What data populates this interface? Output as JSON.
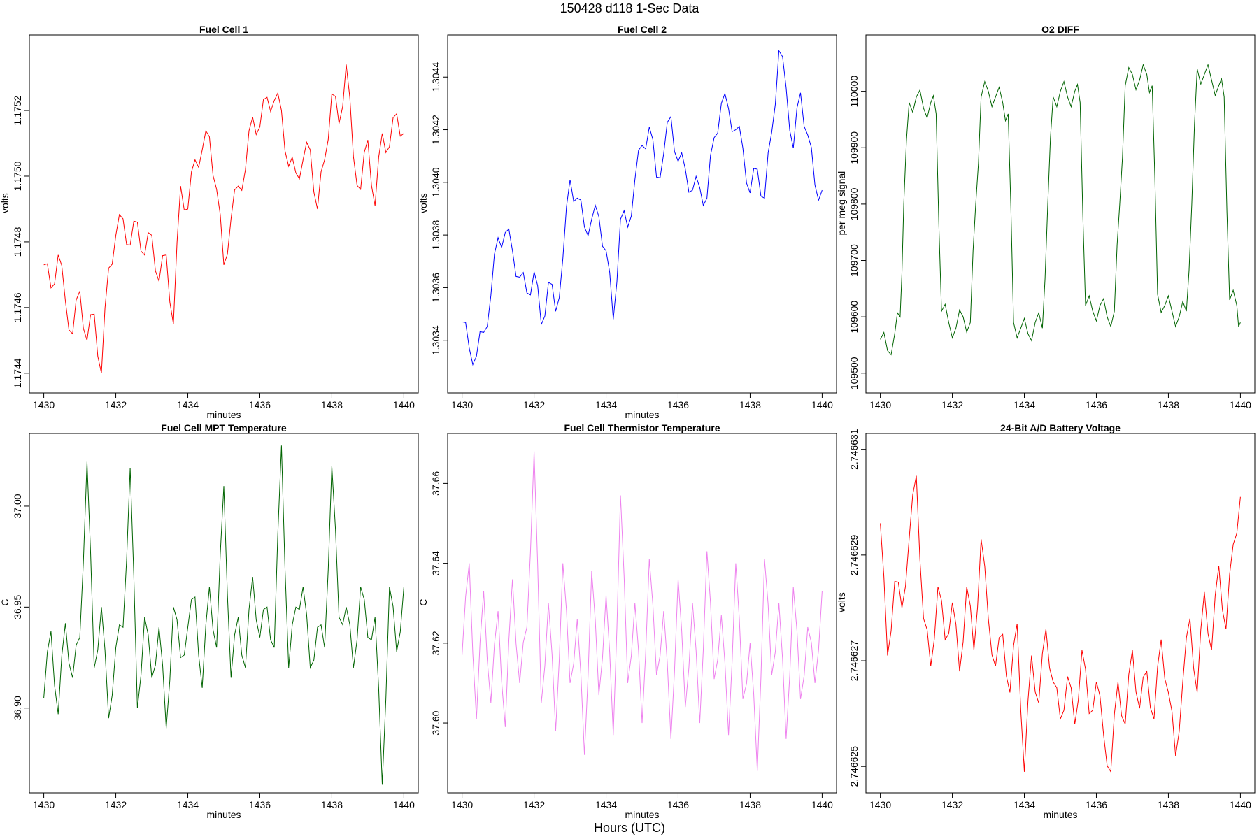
{
  "suptitle": "150428   d118   1-Sec Data",
  "supxlabel": "Hours (UTC)",
  "chart_data": [
    {
      "type": "line",
      "title": "Fuel Cell 1",
      "xlabel": "minutes",
      "ylabel": "volts",
      "color": "#ff0000",
      "xlim": [
        1429.6,
        1440.4
      ],
      "ylim": [
        1.17434,
        1.17543
      ],
      "xticks": [
        "1430",
        "1432",
        "1434",
        "1436",
        "1438",
        "1440"
      ],
      "yticks": [
        "1.1744",
        "1.1746",
        "1.1748",
        "1.1750",
        "1.1752"
      ],
      "series": [
        {
          "x": [
            1430.0,
            1430.2,
            1430.4,
            1430.6,
            1430.8,
            1431.0,
            1431.2,
            1431.4,
            1431.6,
            1431.8,
            1432.0,
            1432.2,
            1432.4,
            1432.6,
            1432.8,
            1433.0,
            1433.2,
            1433.4,
            1433.6,
            1433.8,
            1434.0,
            1434.2,
            1434.4,
            1434.6,
            1434.8,
            1435.0,
            1435.2,
            1435.4,
            1435.6,
            1435.8,
            1436.0,
            1436.2,
            1436.4,
            1436.6,
            1436.8,
            1437.0,
            1437.2,
            1437.4,
            1437.6,
            1437.8,
            1438.0,
            1438.2,
            1438.4,
            1438.6,
            1438.8,
            1439.0,
            1439.2,
            1439.4,
            1439.6,
            1439.8,
            1440.0
          ],
          "y": [
            1.17473,
            1.17466,
            1.17476,
            1.17462,
            1.17452,
            1.17465,
            1.1745,
            1.17458,
            1.1744,
            1.17472,
            1.17482,
            1.17487,
            1.17479,
            1.17486,
            1.17476,
            1.17482,
            1.17468,
            1.17476,
            1.17455,
            1.17497,
            1.1749,
            1.17505,
            1.17508,
            1.17512,
            1.17496,
            1.17473,
            1.17487,
            1.17497,
            1.17502,
            1.17518,
            1.17515,
            1.17524,
            1.17523,
            1.1752,
            1.17503,
            1.17501,
            1.17505,
            1.17508,
            1.1749,
            1.17505,
            1.17525,
            1.17516,
            1.17534,
            1.17506,
            1.17496,
            1.17511,
            1.17491,
            1.17513,
            1.17509,
            1.17519,
            1.17513
          ]
        }
      ]
    },
    {
      "type": "line",
      "title": "Fuel Cell 2",
      "xlabel": "minutes",
      "ylabel": "volts",
      "color": "#0000ff",
      "xlim": [
        1429.6,
        1440.4
      ],
      "ylim": [
        1.3032,
        1.30456
      ],
      "xticks": [
        "1430",
        "1432",
        "1434",
        "1436",
        "1438",
        "1440"
      ],
      "yticks": [
        "1.3034",
        "1.3036",
        "1.3038",
        "1.3040",
        "1.3042",
        "1.3044"
      ],
      "series": [
        {
          "x": [
            1430.0,
            1430.2,
            1430.4,
            1430.6,
            1430.8,
            1431.0,
            1431.2,
            1431.4,
            1431.6,
            1431.8,
            1432.0,
            1432.2,
            1432.4,
            1432.6,
            1432.8,
            1433.0,
            1433.2,
            1433.4,
            1433.6,
            1433.8,
            1434.0,
            1434.2,
            1434.4,
            1434.6,
            1434.8,
            1435.0,
            1435.2,
            1435.4,
            1435.6,
            1435.8,
            1436.0,
            1436.2,
            1436.4,
            1436.6,
            1436.8,
            1437.0,
            1437.2,
            1437.4,
            1437.6,
            1437.8,
            1438.0,
            1438.2,
            1438.4,
            1438.6,
            1438.8,
            1439.0,
            1439.2,
            1439.4,
            1439.6,
            1439.8,
            1440.0
          ],
          "y": [
            1.30347,
            1.30337,
            1.30334,
            1.30343,
            1.30357,
            1.30379,
            1.30381,
            1.30374,
            1.30364,
            1.30358,
            1.30366,
            1.30346,
            1.30362,
            1.30351,
            1.30371,
            1.30401,
            1.30394,
            1.30383,
            1.30386,
            1.30387,
            1.30374,
            1.30348,
            1.30386,
            1.30383,
            1.30401,
            1.30414,
            1.30421,
            1.30402,
            1.30411,
            1.30425,
            1.30408,
            1.30405,
            1.30397,
            1.30398,
            1.30394,
            1.30417,
            1.3043,
            1.30428,
            1.3042,
            1.30413,
            1.30396,
            1.30405,
            1.30394,
            1.30419,
            1.3045,
            1.30436,
            1.30413,
            1.30434,
            1.30418,
            1.30399,
            1.30397
          ]
        }
      ]
    },
    {
      "type": "line",
      "title": "O2 DIFF",
      "xlabel": "",
      "ylabel": "per meg signal",
      "color": "#006400",
      "xlim": [
        1429.6,
        1440.4
      ],
      "ylim": [
        109465,
        110100
      ],
      "xticks": [
        "1430",
        "1432",
        "1434",
        "1436",
        "1438",
        "1440"
      ],
      "yticks": [
        "109500",
        "109600",
        "109700",
        "109800",
        "109900",
        "110000"
      ],
      "series": [
        {
          "x": [
            1430.0,
            1430.2,
            1430.4,
            1430.55,
            1430.65,
            1430.8,
            1431.0,
            1431.2,
            1431.4,
            1431.55,
            1431.7,
            1431.9,
            1432.1,
            1432.3,
            1432.5,
            1432.65,
            1432.8,
            1433.0,
            1433.2,
            1433.4,
            1433.55,
            1433.7,
            1433.9,
            1434.1,
            1434.3,
            1434.5,
            1434.65,
            1434.8,
            1435.0,
            1435.2,
            1435.4,
            1435.55,
            1435.7,
            1435.9,
            1436.1,
            1436.3,
            1436.5,
            1436.65,
            1436.8,
            1437.0,
            1437.2,
            1437.4,
            1437.55,
            1437.7,
            1437.9,
            1438.1,
            1438.3,
            1438.5,
            1438.65,
            1438.8,
            1439.0,
            1439.2,
            1439.4,
            1439.55,
            1439.7,
            1439.9,
            1440.0
          ],
          "y": [
            109560,
            109540,
            109570,
            109600,
            109800,
            109980,
            109990,
            109970,
            109980,
            109960,
            109610,
            109590,
            109580,
            109600,
            109590,
            109800,
            109990,
            110000,
            109990,
            109980,
            109960,
            109590,
            109580,
            109570,
            109590,
            109580,
            109800,
            109990,
            110000,
            109990,
            110000,
            109980,
            109620,
            109610,
            109620,
            109600,
            109610,
            109800,
            110010,
            110030,
            110020,
            110030,
            110010,
            109640,
            109620,
            109610,
            109600,
            109610,
            109800,
            110040,
            110030,
            110020,
            110010,
            109990,
            109630,
            109620,
            109590
          ]
        }
      ]
    },
    {
      "type": "line",
      "title": "Fuel Cell MPT Temperature",
      "xlabel": "minutes",
      "ylabel": "C",
      "color": "#006400",
      "xlim": [
        1429.6,
        1440.4
      ],
      "ylim": [
        36.858,
        37.036
      ],
      "xticks": [
        "1430",
        "1432",
        "1434",
        "1436",
        "1438",
        "1440"
      ],
      "yticks": [
        "36.90",
        "36.95",
        "37.00"
      ],
      "series": [
        {
          "x": [
            1430.0,
            1430.2,
            1430.4,
            1430.6,
            1430.8,
            1431.0,
            1431.2,
            1431.4,
            1431.6,
            1431.8,
            1432.0,
            1432.2,
            1432.4,
            1432.6,
            1432.8,
            1433.0,
            1433.2,
            1433.4,
            1433.6,
            1433.8,
            1434.0,
            1434.2,
            1434.4,
            1434.6,
            1434.8,
            1435.0,
            1435.2,
            1435.4,
            1435.6,
            1435.8,
            1436.0,
            1436.2,
            1436.4,
            1436.6,
            1436.8,
            1437.0,
            1437.2,
            1437.4,
            1437.6,
            1437.8,
            1438.0,
            1438.2,
            1438.4,
            1438.6,
            1438.8,
            1439.0,
            1439.2,
            1439.4,
            1439.6,
            1439.8,
            1440.0
          ],
          "y": [
            36.905,
            36.938,
            36.897,
            36.942,
            36.915,
            36.935,
            37.022,
            36.92,
            36.95,
            36.895,
            36.93,
            36.94,
            37.019,
            36.9,
            36.945,
            36.915,
            36.94,
            36.89,
            36.95,
            36.925,
            36.94,
            36.955,
            36.91,
            36.96,
            36.93,
            37.01,
            36.915,
            36.945,
            36.92,
            36.965,
            36.935,
            36.95,
            36.93,
            37.03,
            36.92,
            36.95,
            36.96,
            36.92,
            36.94,
            36.93,
            37.02,
            36.945,
            36.95,
            36.92,
            36.96,
            36.935,
            36.945,
            36.862,
            36.96,
            36.928,
            36.96
          ]
        }
      ]
    },
    {
      "type": "line",
      "title": "Fuel Cell Thermistor Temperature",
      "xlabel": "minutes",
      "ylabel": "C",
      "color": "#ee82ee",
      "xlim": [
        1429.6,
        1440.4
      ],
      "ylim": [
        37.5825,
        37.6725
      ],
      "xticks": [
        "1430",
        "1432",
        "1434",
        "1436",
        "1438",
        "1440"
      ],
      "yticks": [
        "37.60",
        "37.62",
        "37.64",
        "37.66"
      ],
      "series": [
        {
          "x": [
            1430.0,
            1430.2,
            1430.4,
            1430.6,
            1430.8,
            1431.0,
            1431.2,
            1431.4,
            1431.6,
            1431.8,
            1432.0,
            1432.2,
            1432.4,
            1432.6,
            1432.8,
            1433.0,
            1433.2,
            1433.4,
            1433.6,
            1433.8,
            1434.0,
            1434.2,
            1434.4,
            1434.6,
            1434.8,
            1435.0,
            1435.2,
            1435.4,
            1435.6,
            1435.8,
            1436.0,
            1436.2,
            1436.4,
            1436.6,
            1436.8,
            1437.0,
            1437.2,
            1437.4,
            1437.6,
            1437.8,
            1438.0,
            1438.2,
            1438.4,
            1438.6,
            1438.8,
            1439.0,
            1439.2,
            1439.4,
            1439.6,
            1439.8,
            1440.0
          ],
          "y": [
            37.617,
            37.64,
            37.601,
            37.633,
            37.605,
            37.628,
            37.599,
            37.636,
            37.61,
            37.624,
            37.668,
            37.605,
            37.63,
            37.598,
            37.64,
            37.61,
            37.626,
            37.592,
            37.638,
            37.607,
            37.632,
            37.597,
            37.657,
            37.61,
            37.63,
            37.6,
            37.641,
            37.612,
            37.628,
            37.596,
            37.636,
            37.604,
            37.63,
            37.6,
            37.643,
            37.611,
            37.627,
            37.597,
            37.64,
            37.606,
            37.62,
            37.588,
            37.641,
            37.612,
            37.63,
            37.596,
            37.634,
            37.606,
            37.624,
            37.61,
            37.633
          ]
        }
      ]
    },
    {
      "type": "line",
      "title": "24-Bit A/D Battery Voltage",
      "xlabel": "minutes",
      "ylabel": "volts",
      "color": "#ff0000",
      "xlim": [
        1429.6,
        1440.4
      ],
      "ylim": [
        2.7466245,
        2.7466313
      ],
      "xticks": [
        "1430",
        "1432",
        "1434",
        "1436",
        "1438",
        "1440"
      ],
      "yticks": [
        "2.746625",
        "2.746627",
        "2.746629",
        "2.746631"
      ],
      "series": [
        {
          "x": [
            1430.0,
            1430.2,
            1430.4,
            1430.6,
            1430.8,
            1431.0,
            1431.2,
            1431.4,
            1431.6,
            1431.8,
            1432.0,
            1432.2,
            1432.4,
            1432.6,
            1432.8,
            1433.0,
            1433.2,
            1433.4,
            1433.6,
            1433.8,
            1434.0,
            1434.2,
            1434.4,
            1434.6,
            1434.8,
            1435.0,
            1435.2,
            1435.4,
            1435.6,
            1435.8,
            1436.0,
            1436.2,
            1436.4,
            1436.6,
            1436.8,
            1437.0,
            1437.2,
            1437.4,
            1437.6,
            1437.8,
            1438.0,
            1438.2,
            1438.4,
            1438.6,
            1438.8,
            1439.0,
            1439.2,
            1439.4,
            1439.6,
            1439.8,
            1440.0
          ],
          "y": [
            2.7466296,
            2.7466271,
            2.7466285,
            2.746628,
            2.7466293,
            2.7466305,
            2.7466278,
            2.7466269,
            2.7466284,
            2.7466274,
            2.7466281,
            2.7466268,
            2.7466284,
            2.7466272,
            2.7466293,
            2.7466278,
            2.7466269,
            2.7466275,
            2.7466264,
            2.7466277,
            2.7466249,
            2.7466271,
            2.7466262,
            2.7466276,
            2.7466266,
            2.7466259,
            2.7466267,
            2.7466258,
            2.7466272,
            2.746626,
            2.7466266,
            2.7466256,
            2.7466249,
            2.7466266,
            2.7466258,
            2.7466272,
            2.7466261,
            2.7466268,
            2.7466259,
            2.7466274,
            2.7466264,
            2.7466252,
            2.7466266,
            2.7466278,
            2.7466264,
            2.7466283,
            2.7466272,
            2.7466288,
            2.7466276,
            2.7466292,
            2.7466301
          ]
        }
      ]
    }
  ]
}
